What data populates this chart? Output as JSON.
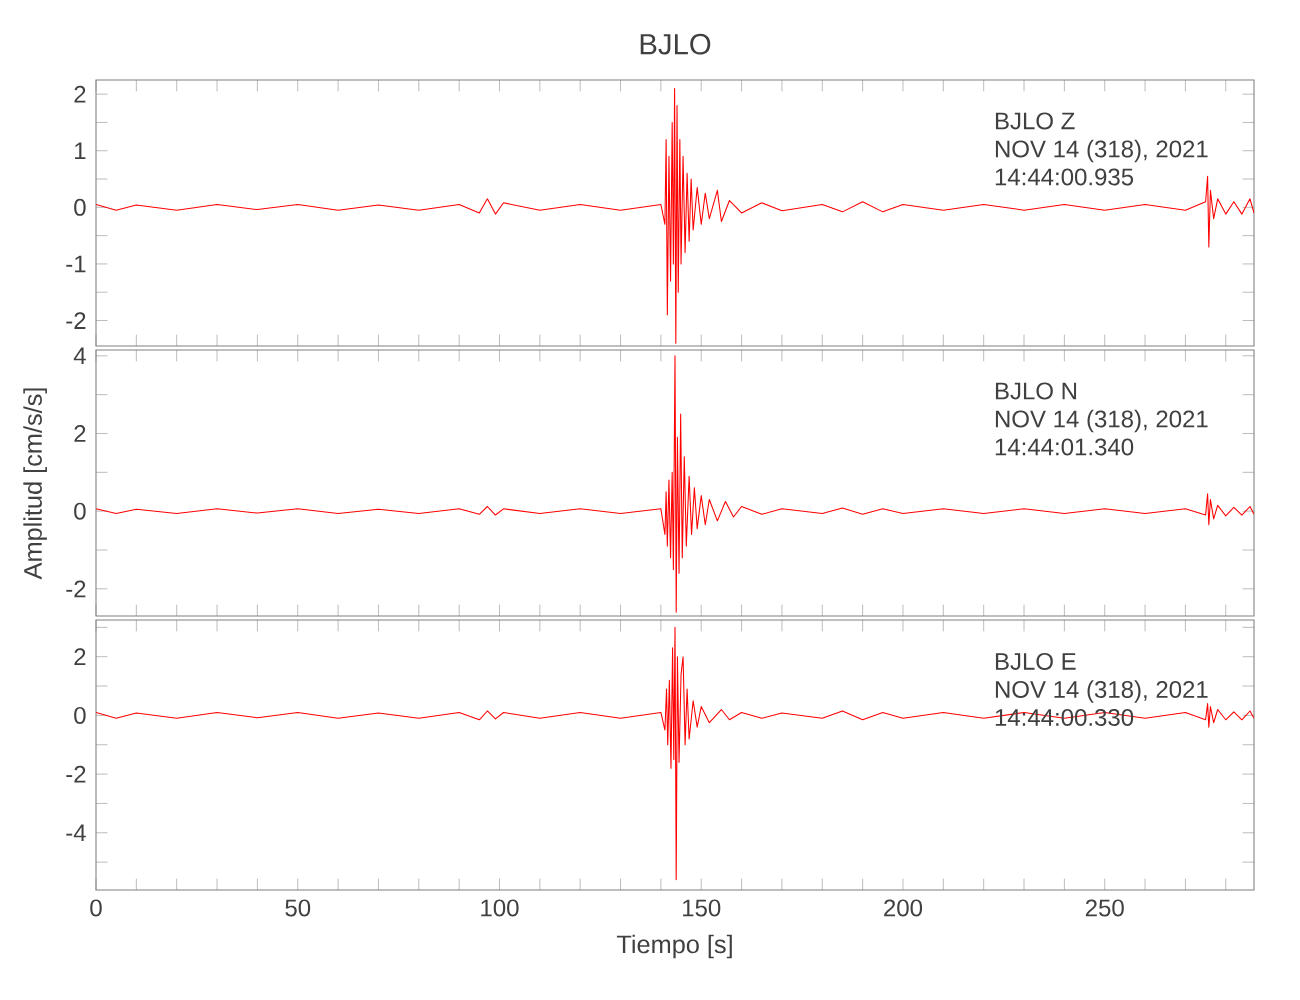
{
  "chart_data": [
    {
      "type": "line",
      "title": "BJLO",
      "color": "#ff0000",
      "tick_labels": "y",
      "annotations": [
        "BJLO   Z",
        "NOV 14 (318), 2021",
        "14:44:00.935"
      ],
      "xlim": [
        0,
        287
      ],
      "ylim": [
        -2.45,
        2.25
      ],
      "xticks": [
        0,
        {
          "value": 10,
          "label": null
        },
        {
          "value": 20,
          "label": null
        },
        {
          "value": 30,
          "label": null
        },
        {
          "value": 40,
          "label": null
        },
        50,
        {
          "value": 60,
          "label": null
        },
        {
          "value": 70,
          "label": null
        },
        {
          "value": 80,
          "label": null
        },
        {
          "value": 90,
          "label": null
        },
        100,
        {
          "value": 110,
          "label": null
        },
        {
          "value": 120,
          "label": null
        },
        {
          "value": 130,
          "label": null
        },
        {
          "value": 140,
          "label": null
        },
        150,
        {
          "value": 160,
          "label": null
        },
        {
          "value": 170,
          "label": null
        },
        {
          "value": 180,
          "label": null
        },
        {
          "value": 190,
          "label": null
        },
        200,
        {
          "value": 210,
          "label": null
        },
        {
          "value": 220,
          "label": null
        },
        {
          "value": 230,
          "label": null
        },
        {
          "value": 240,
          "label": null
        },
        250,
        {
          "value": 260,
          "label": null
        },
        {
          "value": 270,
          "label": null
        },
        {
          "value": 280,
          "label": null
        }
      ],
      "yticks": [
        -2,
        {
          "value": -1.5,
          "label": null
        },
        -1,
        {
          "value": -0.5,
          "label": null
        },
        0,
        {
          "value": 0.5,
          "label": null
        },
        1,
        {
          "value": 1.5,
          "label": null
        },
        2
      ],
      "x": [
        0,
        5,
        10,
        20,
        30,
        40,
        50,
        60,
        70,
        80,
        90,
        95,
        97,
        99,
        101,
        110,
        120,
        130,
        140,
        141,
        141.3,
        141.6,
        142,
        142.4,
        142.8,
        143.1,
        143.4,
        143.7,
        144,
        144.3,
        144.7,
        145,
        145.5,
        146,
        146.5,
        147,
        147.5,
        148,
        149,
        150,
        151,
        152,
        154,
        155,
        157,
        160,
        165,
        170,
        180,
        185,
        190,
        195,
        200,
        210,
        220,
        230,
        240,
        250,
        260,
        270,
        275,
        275.5,
        275.8,
        276.2,
        277,
        278,
        280,
        282,
        284,
        286,
        287
      ],
      "values": [
        0.05,
        -0.05,
        0.04,
        -0.05,
        0.05,
        -0.04,
        0.05,
        -0.05,
        0.04,
        -0.05,
        0.05,
        -0.1,
        0.15,
        -0.12,
        0.08,
        -0.05,
        0.05,
        -0.05,
        0.05,
        -0.3,
        1.2,
        -1.9,
        0.9,
        -1.3,
        1.5,
        -1.0,
        2.1,
        -2.4,
        1.8,
        -1.5,
        1.2,
        -1.0,
        0.9,
        -0.8,
        0.6,
        -0.6,
        0.5,
        -0.4,
        0.35,
        -0.3,
        0.25,
        -0.2,
        0.3,
        -0.25,
        0.12,
        -0.1,
        0.08,
        -0.06,
        0.05,
        -0.08,
        0.1,
        -0.08,
        0.05,
        -0.05,
        0.05,
        -0.05,
        0.05,
        -0.05,
        0.05,
        -0.05,
        0.1,
        0.55,
        -0.7,
        0.3,
        -0.2,
        0.15,
        -0.12,
        0.1,
        -0.12,
        0.15,
        -0.1
      ]
    },
    {
      "type": "line",
      "ylabel": "Amplitud [cm/s/s]",
      "color": "#ff0000",
      "tick_labels": "y",
      "annotations": [
        "BJLO   N",
        "NOV 14 (318), 2021",
        "14:44:01.340"
      ],
      "xlim": [
        0,
        287
      ],
      "ylim": [
        -2.7,
        4.15
      ],
      "xticks": [
        0,
        {
          "value": 10,
          "label": null
        },
        {
          "value": 20,
          "label": null
        },
        {
          "value": 30,
          "label": null
        },
        {
          "value": 40,
          "label": null
        },
        50,
        {
          "value": 60,
          "label": null
        },
        {
          "value": 70,
          "label": null
        },
        {
          "value": 80,
          "label": null
        },
        {
          "value": 90,
          "label": null
        },
        100,
        {
          "value": 110,
          "label": null
        },
        {
          "value": 120,
          "label": null
        },
        {
          "value": 130,
          "label": null
        },
        {
          "value": 140,
          "label": null
        },
        150,
        {
          "value": 160,
          "label": null
        },
        {
          "value": 170,
          "label": null
        },
        {
          "value": 180,
          "label": null
        },
        {
          "value": 190,
          "label": null
        },
        200,
        {
          "value": 210,
          "label": null
        },
        {
          "value": 220,
          "label": null
        },
        {
          "value": 230,
          "label": null
        },
        {
          "value": 240,
          "label": null
        },
        250,
        {
          "value": 260,
          "label": null
        },
        {
          "value": 270,
          "label": null
        },
        {
          "value": 280,
          "label": null
        }
      ],
      "yticks": [
        -2,
        {
          "value": -1,
          "label": null
        },
        0,
        {
          "value": 1,
          "label": null
        },
        2,
        {
          "value": 3,
          "label": null
        },
        4
      ],
      "x": [
        0,
        5,
        10,
        20,
        30,
        40,
        50,
        60,
        70,
        80,
        90,
        95,
        97,
        99,
        101,
        110,
        120,
        130,
        140,
        141,
        141.3,
        141.6,
        142,
        142.4,
        142.8,
        143.1,
        143.5,
        143.8,
        144.1,
        144.5,
        144.9,
        145.3,
        145.8,
        146.3,
        147,
        147.6,
        148.3,
        149,
        150,
        151,
        152,
        154,
        156,
        158,
        160,
        165,
        170,
        180,
        185,
        190,
        195,
        200,
        210,
        220,
        230,
        240,
        250,
        260,
        270,
        275,
        275.5,
        275.8,
        276.2,
        277,
        278,
        280,
        282,
        284,
        286,
        287
      ],
      "values": [
        0.06,
        -0.06,
        0.05,
        -0.06,
        0.06,
        -0.05,
        0.06,
        -0.06,
        0.05,
        -0.06,
        0.06,
        -0.08,
        0.12,
        -0.1,
        0.06,
        -0.06,
        0.06,
        -0.06,
        0.06,
        -0.6,
        0.5,
        -0.9,
        0.8,
        -1.2,
        1.0,
        -1.5,
        4.0,
        -2.6,
        1.9,
        -1.6,
        2.5,
        -1.2,
        1.4,
        -0.9,
        0.9,
        -0.6,
        0.6,
        -0.45,
        0.4,
        -0.35,
        0.3,
        -0.25,
        0.25,
        -0.15,
        0.12,
        -0.08,
        0.06,
        -0.06,
        0.08,
        -0.08,
        0.06,
        -0.06,
        0.06,
        -0.06,
        0.06,
        -0.06,
        0.06,
        -0.06,
        0.06,
        -0.1,
        0.45,
        -0.35,
        0.3,
        -0.2,
        0.15,
        -0.12,
        0.1,
        -0.1,
        0.12,
        -0.08
      ]
    },
    {
      "type": "line",
      "xlabel": "Tiempo [s]",
      "color": "#ff0000",
      "annotations": [
        "BJLO   E",
        "NOV 14 (318), 2021",
        "14:44:00.330"
      ],
      "xlim": [
        0,
        287
      ],
      "ylim": [
        -5.95,
        3.25
      ],
      "xticks": [
        0,
        {
          "value": 10,
          "label": null
        },
        {
          "value": 20,
          "label": null
        },
        {
          "value": 30,
          "label": null
        },
        {
          "value": 40,
          "label": null
        },
        50,
        {
          "value": 60,
          "label": null
        },
        {
          "value": 70,
          "label": null
        },
        {
          "value": 80,
          "label": null
        },
        {
          "value": 90,
          "label": null
        },
        100,
        {
          "value": 110,
          "label": null
        },
        {
          "value": 120,
          "label": null
        },
        {
          "value": 130,
          "label": null
        },
        {
          "value": 140,
          "label": null
        },
        150,
        {
          "value": 160,
          "label": null
        },
        {
          "value": 170,
          "label": null
        },
        {
          "value": 180,
          "label": null
        },
        {
          "value": 190,
          "label": null
        },
        200,
        {
          "value": 210,
          "label": null
        },
        {
          "value": 220,
          "label": null
        },
        {
          "value": 230,
          "label": null
        },
        {
          "value": 240,
          "label": null
        },
        250,
        {
          "value": 260,
          "label": null
        },
        {
          "value": 270,
          "label": null
        },
        {
          "value": 280,
          "label": null
        }
      ],
      "yticks": [
        {
          "value": -5,
          "label": null
        },
        -4,
        {
          "value": -3,
          "label": null
        },
        -2,
        {
          "value": -1,
          "label": null
        },
        0,
        {
          "value": 1,
          "label": null
        },
        2,
        {
          "value": 3,
          "label": null
        }
      ],
      "x": [
        0,
        5,
        10,
        20,
        30,
        40,
        50,
        60,
        70,
        80,
        90,
        95,
        97,
        99,
        101,
        110,
        120,
        130,
        140,
        141,
        141.4,
        141.7,
        142.1,
        142.5,
        142.9,
        143.2,
        143.5,
        143.8,
        144.1,
        144.5,
        145,
        145.5,
        146,
        146.5,
        147,
        148,
        149,
        150,
        152,
        155,
        157,
        160,
        165,
        170,
        180,
        185,
        190,
        195,
        200,
        210,
        220,
        230,
        240,
        250,
        260,
        270,
        275,
        275.5,
        275.8,
        276.2,
        277,
        278,
        280,
        282,
        284,
        286,
        287
      ],
      "values": [
        0.1,
        -0.1,
        0.08,
        -0.1,
        0.1,
        -0.08,
        0.1,
        -0.1,
        0.08,
        -0.1,
        0.1,
        -0.15,
        0.15,
        -0.12,
        0.1,
        -0.1,
        0.1,
        -0.1,
        0.1,
        -0.5,
        0.9,
        -1.0,
        1.2,
        -1.8,
        2.3,
        -1.5,
        3.0,
        -5.6,
        2.0,
        -1.6,
        1.4,
        2.0,
        -1.0,
        0.9,
        -0.8,
        0.5,
        -0.4,
        0.3,
        -0.25,
        0.2,
        -0.15,
        0.1,
        -0.1,
        0.08,
        -0.1,
        0.15,
        -0.15,
        0.1,
        -0.1,
        0.1,
        -0.1,
        0.1,
        -0.1,
        0.1,
        -0.1,
        0.1,
        -0.15,
        0.4,
        -0.4,
        0.3,
        -0.25,
        0.2,
        -0.15,
        0.12,
        -0.15,
        0.15,
        -0.1
      ]
    }
  ]
}
